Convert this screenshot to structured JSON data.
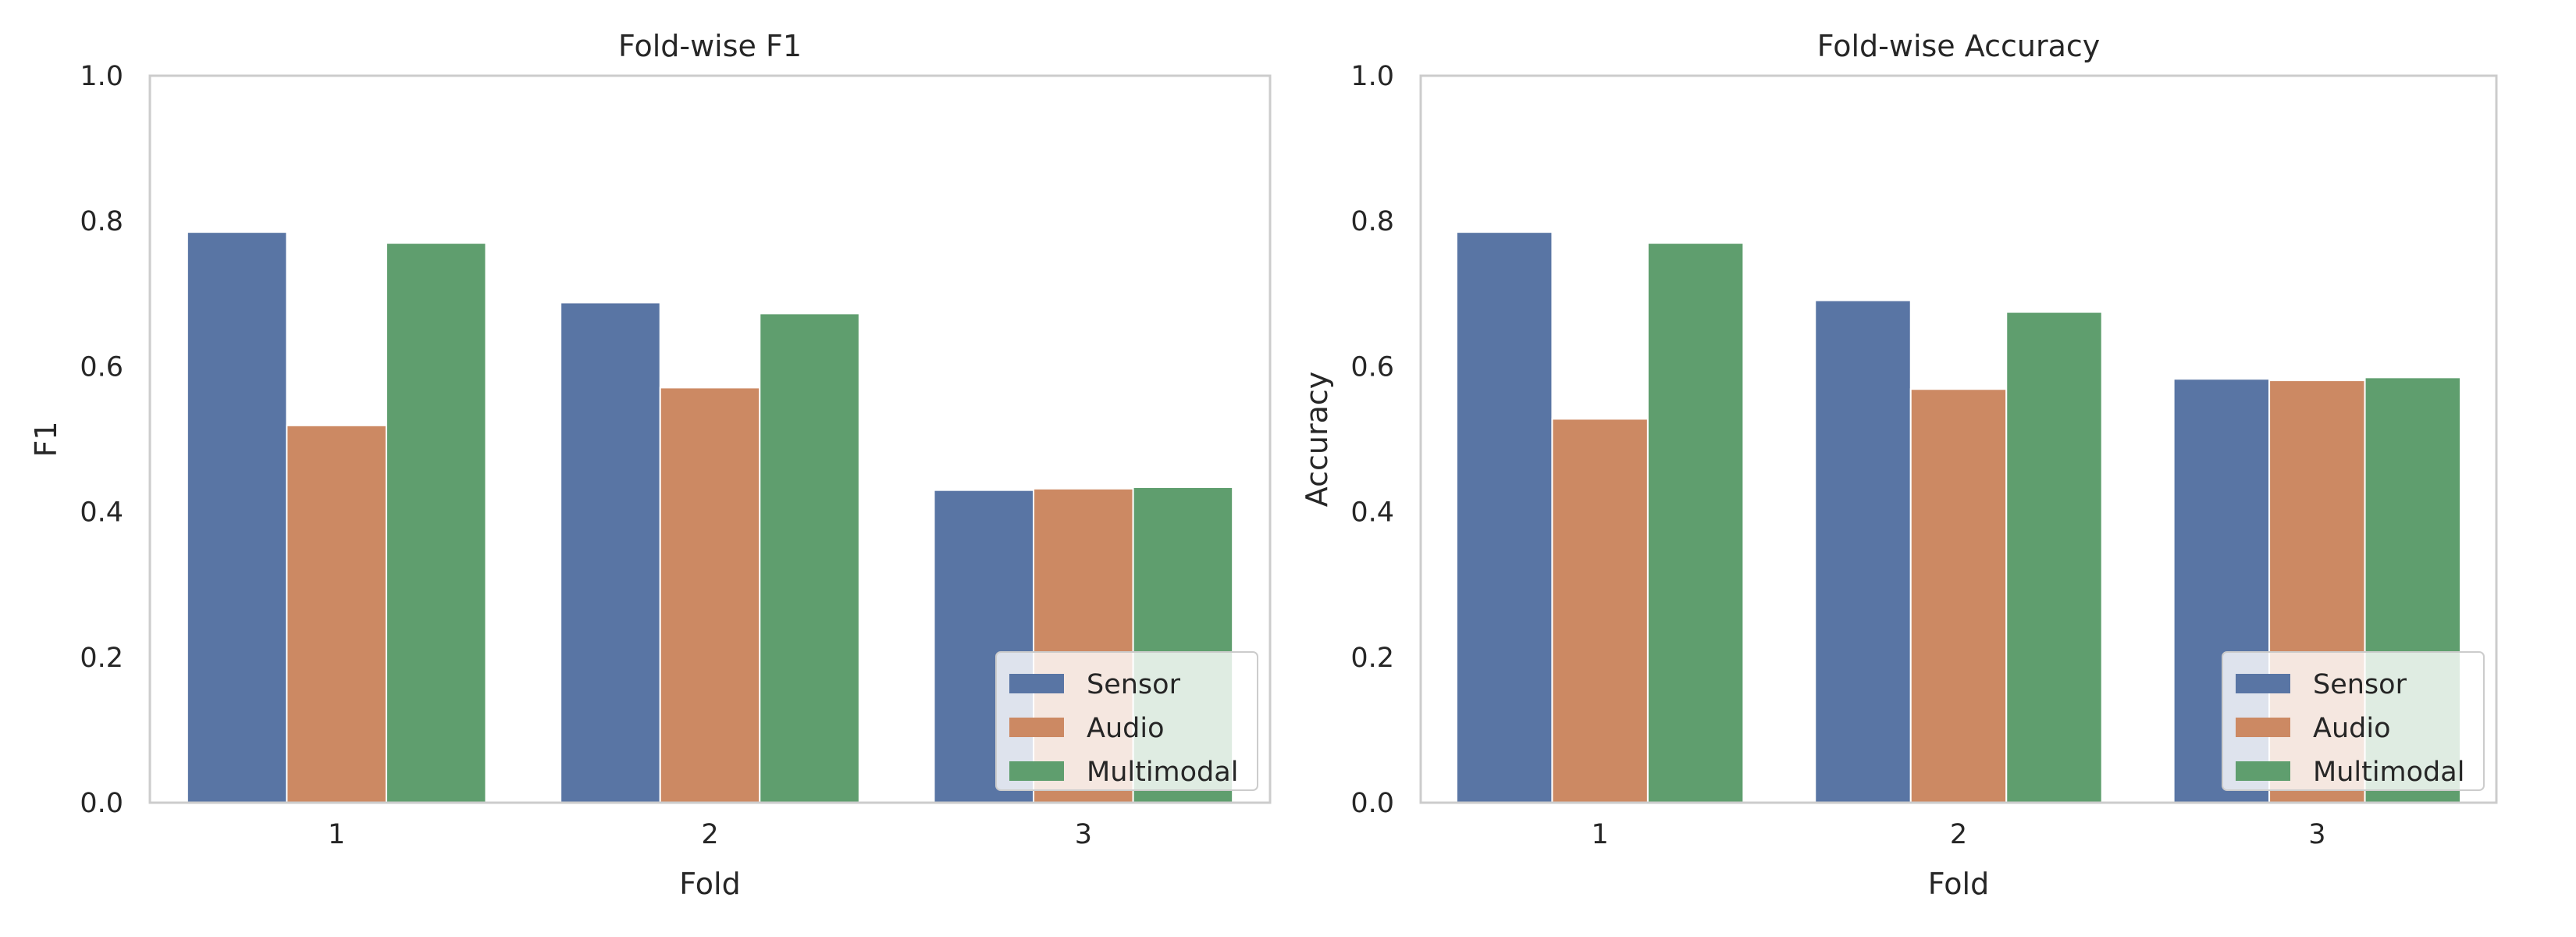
{
  "colors": {
    "sensor": "#5975a4",
    "audio": "#cc8963",
    "multimodal": "#5f9e6e",
    "axes_frame": "#cccccc",
    "text": "#262626",
    "legend_frame": "#cccccc"
  },
  "chart_data": [
    {
      "type": "bar",
      "title": "Fold-wise F1",
      "xlabel": "Fold",
      "ylabel": "F1",
      "categories": [
        "1",
        "2",
        "3"
      ],
      "ylim": [
        0,
        1.0
      ],
      "yticks": [
        "0.0",
        "0.2",
        "0.4",
        "0.6",
        "0.8",
        "1.0"
      ],
      "grid": false,
      "legend_position": "lower right",
      "series": [
        {
          "name": "Sensor",
          "color_key": "sensor",
          "values": [
            0.785,
            0.688,
            0.43
          ]
        },
        {
          "name": "Audio",
          "color_key": "audio",
          "values": [
            0.519,
            0.571,
            0.432
          ]
        },
        {
          "name": "Multimodal",
          "color_key": "multimodal",
          "values": [
            0.77,
            0.673,
            0.434
          ]
        }
      ]
    },
    {
      "type": "bar",
      "title": "Fold-wise Accuracy",
      "xlabel": "Fold",
      "ylabel": "Accuracy",
      "categories": [
        "1",
        "2",
        "3"
      ],
      "ylim": [
        0,
        1.0
      ],
      "yticks": [
        "0.0",
        "0.2",
        "0.4",
        "0.6",
        "0.8",
        "1.0"
      ],
      "grid": false,
      "legend_position": "lower right",
      "series": [
        {
          "name": "Sensor",
          "color_key": "sensor",
          "values": [
            0.785,
            0.691,
            0.583
          ]
        },
        {
          "name": "Audio",
          "color_key": "audio",
          "values": [
            0.528,
            0.569,
            0.581
          ]
        },
        {
          "name": "Multimodal",
          "color_key": "multimodal",
          "values": [
            0.77,
            0.675,
            0.585
          ]
        }
      ]
    }
  ]
}
